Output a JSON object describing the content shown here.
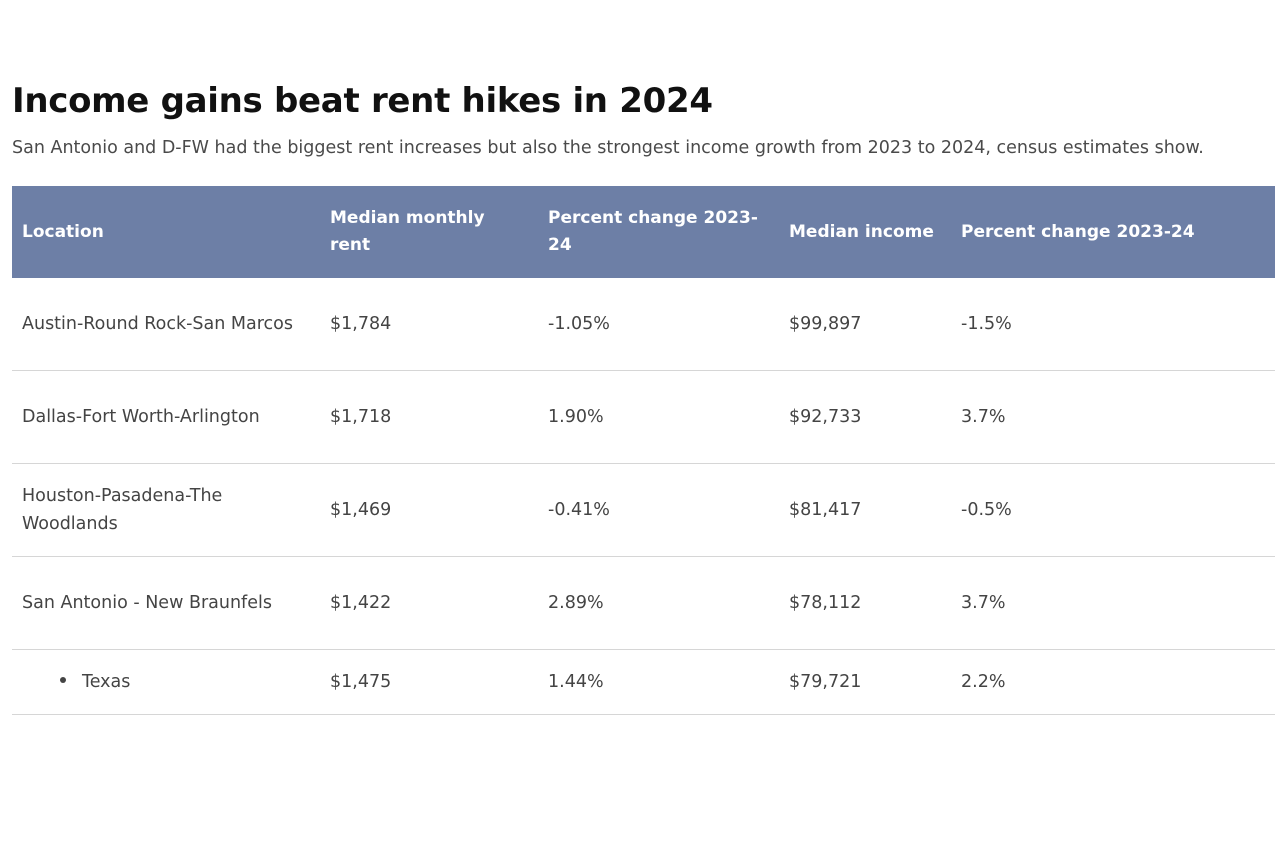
{
  "title": "Income gains beat rent hikes in 2024",
  "subtitle": "San Antonio and D-FW had the biggest rent increases but also the strongest income growth from 2023 to 2024, census estimates show.",
  "colors": {
    "header_bg": "#6d7fa6",
    "header_text": "#ffffff",
    "row_border": "#d6d6d6"
  },
  "chart_data": {
    "type": "table",
    "title": "Income gains beat rent hikes in 2024",
    "columns": [
      "Location",
      "Median monthly rent",
      "Percent change 2023-24",
      "Median income",
      "Percent change 2023-24"
    ],
    "rows": [
      [
        "Austin-Round Rock-San Marcos",
        "$1,784",
        "-1.05%",
        "$99,897",
        "-1.5%"
      ],
      [
        "Dallas-Fort Worth-Arlington",
        "$1,718",
        "1.90%",
        "$92,733",
        "3.7%"
      ],
      [
        "Houston-Pasadena-The Woodlands",
        "$1,469",
        "-0.41%",
        "$81,417",
        "-0.5%"
      ],
      [
        "San Antonio - New Braunfels",
        "$1,422",
        "2.89%",
        "$78,112",
        "3.7%"
      ],
      [
        "Texas",
        "$1,475",
        "1.44%",
        "$79,721",
        "2.2%"
      ]
    ]
  }
}
